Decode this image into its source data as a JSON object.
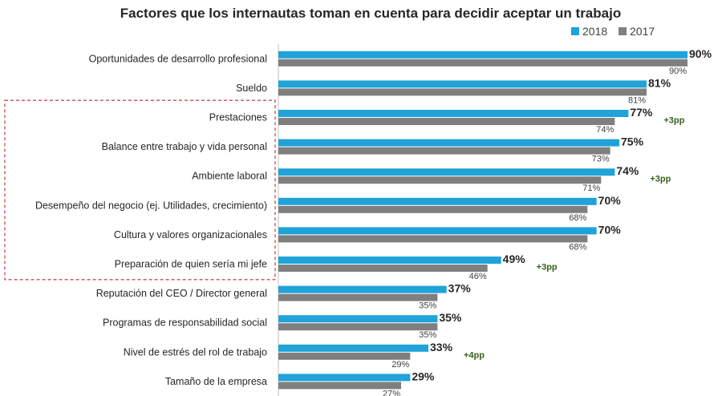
{
  "chart_data": {
    "type": "bar",
    "orientation": "horizontal",
    "title": "Factores que los internautas toman en cuenta para decidir aceptar un trabajo",
    "categories": [
      "Oportunidades de desarrollo profesional",
      "Sueldo",
      "Prestaciones",
      "Balance entre trabajo y vida personal",
      "Ambiente laboral",
      "Desempeño del negocio (ej. Utilidades, crecimiento)",
      "Cultura y valores organizacionales",
      "Preparación de quien sería mi jefe",
      "Reputación del CEO / Director general",
      "Programas de responsabilidad social",
      "Nivel de estrés del rol de trabajo",
      "Tamaño de la empresa"
    ],
    "series": [
      {
        "name": "2018",
        "color": "#1fa3d8",
        "values": [
          90,
          81,
          77,
          75,
          74,
          70,
          70,
          49,
          37,
          35,
          33,
          29
        ]
      },
      {
        "name": "2017",
        "color": "#7f7f7f",
        "values": [
          90,
          81,
          74,
          73,
          71,
          68,
          68,
          46,
          35,
          35,
          29,
          27
        ]
      }
    ],
    "value_suffix": "%",
    "annotations": [
      {
        "category_index": 2,
        "text": "+3pp"
      },
      {
        "category_index": 4,
        "text": "+3pp"
      },
      {
        "category_index": 7,
        "text": "+3pp"
      },
      {
        "category_index": 10,
        "text": "+4pp"
      }
    ],
    "highlight_group": {
      "from_index": 2,
      "to_index": 7,
      "style": "dashed-red-box",
      "color": "#c0504d"
    },
    "xlim": [
      0,
      90
    ],
    "legend": {
      "position": "top-right",
      "entries": [
        "2018",
        "2017"
      ]
    },
    "grid": false
  }
}
